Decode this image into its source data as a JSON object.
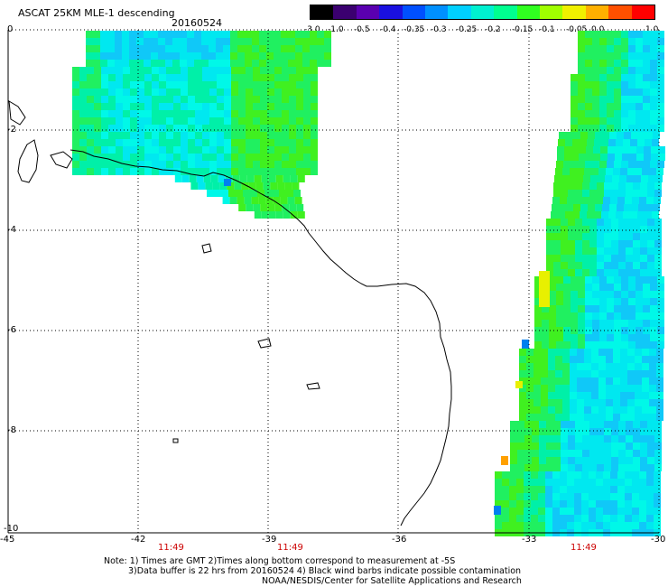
{
  "header": {
    "title": "ASCAT 25KM MLE-1 descending",
    "date": "20160524"
  },
  "colorbar": {
    "labels": [
      "-3.0",
      "-1.0",
      "-0.5",
      "-0.4",
      "-0.35",
      "-0.3",
      "-0.25",
      "-0.2",
      "-0.15",
      "-0.1",
      "-0.05",
      "0.0",
      "1.0"
    ],
    "colors": [
      "#000000",
      "#3b0070",
      "#5a00b0",
      "#1a10e0",
      "#0050ff",
      "#0090ff",
      "#00d0ff",
      "#00f0d0",
      "#00ff90",
      "#30ff20",
      "#a0ff00",
      "#f0f000",
      "#ffb000",
      "#ff5000",
      "#ff0000"
    ]
  },
  "axes": {
    "y_labels": [
      "0",
      "-2",
      "-4",
      "-6",
      "-8",
      "-10"
    ],
    "x_labels": [
      "-45",
      "-42",
      "-39",
      "-36",
      "-33",
      "-30"
    ],
    "time_labels": [
      "11:49",
      "11:49",
      "11:49"
    ]
  },
  "notes": {
    "line1": "Note: 1) Times are GMT 2)Times along bottom correspond to measurement at -5S",
    "line2": "3)Data buffer is 22 hrs from 20160524 4) Black wind barbs indicate possible contamination",
    "line3": "NOAA/NESDIS/Center for Satellite Applications and Research"
  },
  "swath_colors": {
    "cyan": "#00f8e8",
    "aqua": "#00e8f0",
    "green_cyan": "#00f0a8",
    "green": "#20f060",
    "bright_green": "#40f020",
    "yellow": "#e8f000",
    "orange": "#ffa000",
    "blue": "#0080f0",
    "light_blue": "#10c8f8"
  }
}
